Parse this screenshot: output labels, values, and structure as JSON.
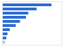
{
  "chart_data": {
    "type": "bar",
    "orientation": "horizontal",
    "categories": [
      null,
      null,
      null,
      null,
      null,
      null,
      null,
      null,
      null,
      null
    ],
    "values": [
      83,
      58,
      44,
      40,
      30,
      23,
      13,
      9,
      7,
      5
    ],
    "colors": [
      "#2b6cd4",
      "#2b6cd4",
      "#2b6cd4",
      "#2b6cd4",
      "#2b6cd4",
      "#2b6cd4",
      "#2b6cd4",
      "#2b6cd4",
      "#2b6cd4",
      "#a9c4ee"
    ],
    "xlim": [
      0,
      100
    ],
    "tick_labels": false,
    "grid": false
  }
}
